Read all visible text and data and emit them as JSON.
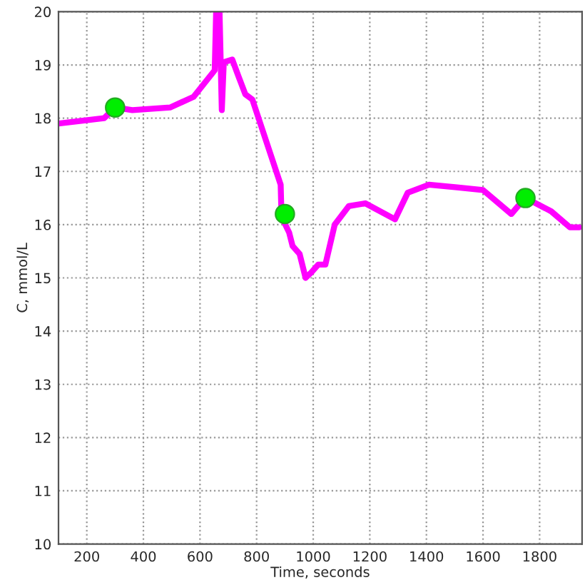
{
  "chart_data": {
    "type": "line",
    "xlabel": "Time, seconds",
    "ylabel": "C, mmol/L",
    "xlim": [
      100,
      1950
    ],
    "ylim": [
      10,
      20
    ],
    "xticks": [
      200,
      400,
      600,
      800,
      1000,
      1200,
      1400,
      1600,
      1800
    ],
    "yticks": [
      10,
      11,
      12,
      13,
      14,
      15,
      16,
      17,
      18,
      19,
      20
    ],
    "grid": true,
    "legend": false,
    "series": [
      {
        "color": "#ff00ff",
        "marker": "none",
        "line_style": "solid",
        "x": [
          100,
          261,
          300,
          361,
          494,
          577,
          652,
          657,
          669,
          677,
          684,
          714,
          735,
          760,
          785,
          885,
          888,
          915,
          927,
          952,
          973,
          993,
          1018,
          1043,
          1076,
          1126,
          1184,
          1289,
          1334,
          1409,
          1508,
          1600,
          1700,
          1724,
          1751,
          1841,
          1907,
          1940
        ],
        "values": [
          17.9,
          18.0,
          18.2,
          18.15,
          18.2,
          18.4,
          18.9,
          20,
          20,
          18.15,
          19.05,
          19.1,
          18.8,
          18.45,
          18.35,
          16.75,
          16.15,
          15.85,
          15.6,
          15.45,
          15.0,
          15.1,
          15.25,
          15.25,
          16.0,
          16.35,
          16.4,
          16.1,
          16.6,
          16.75,
          16.7,
          16.65,
          16.2,
          16.35,
          16.5,
          16.25,
          15.95,
          15.95
        ]
      },
      {
        "type": "scatter",
        "color": "#00ee00",
        "marker": "circle",
        "x": [
          300,
          900,
          1750
        ],
        "values": [
          18.2,
          16.2,
          16.5
        ]
      }
    ]
  }
}
